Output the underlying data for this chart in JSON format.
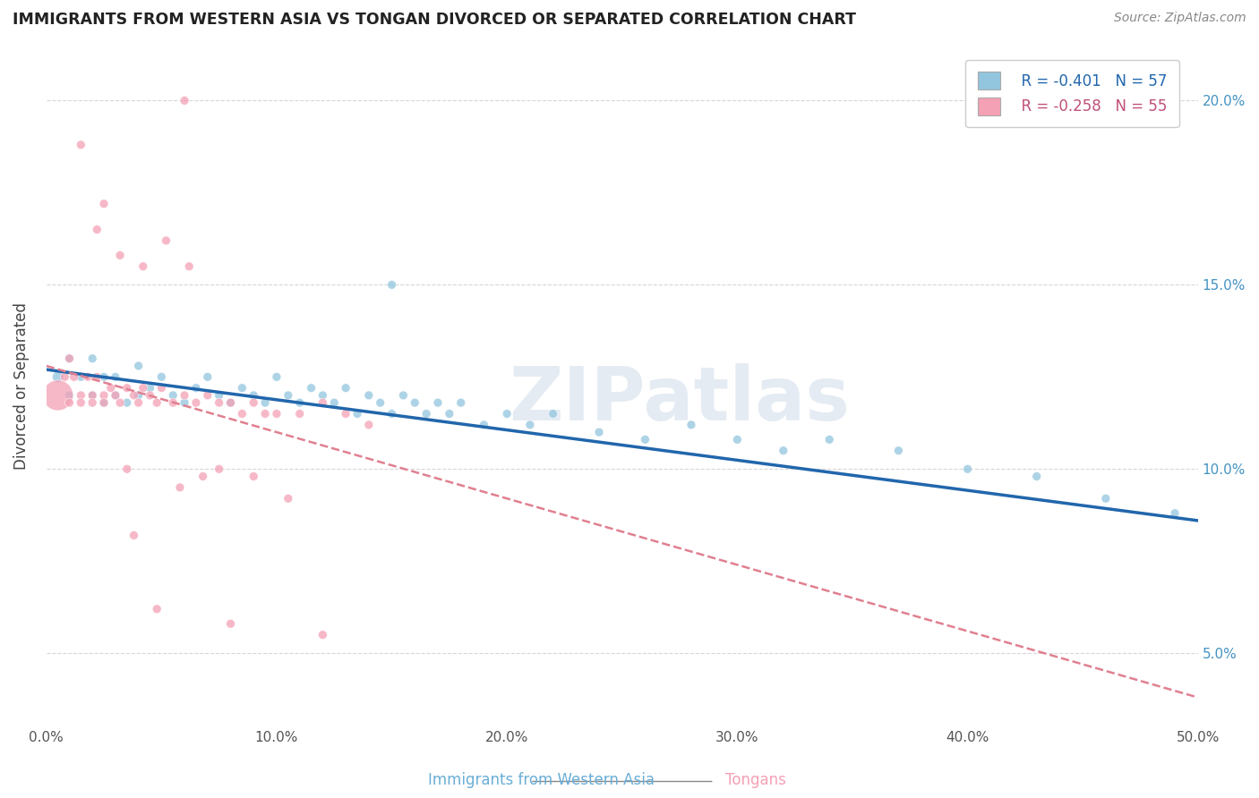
{
  "title": "IMMIGRANTS FROM WESTERN ASIA VS TONGAN DIVORCED OR SEPARATED CORRELATION CHART",
  "source_text": "Source: ZipAtlas.com",
  "xlabel_blue": "Immigrants from Western Asia",
  "xlabel_pink": "Tongans",
  "ylabel": "Divorced or Separated",
  "watermark": "ZIPatlas",
  "legend_blue_r": "R = -0.401",
  "legend_blue_n": "N = 57",
  "legend_pink_r": "R = -0.258",
  "legend_pink_n": "N = 55",
  "blue_color": "#92c5de",
  "pink_color": "#f4a0b5",
  "trend_blue_color": "#2166ac",
  "trend_pink_color": "#e08090",
  "xlim": [
    0.0,
    0.5
  ],
  "ylim": [
    0.03,
    0.215
  ],
  "x_ticks": [
    0.0,
    0.1,
    0.2,
    0.3,
    0.4,
    0.5
  ],
  "x_tick_labels": [
    "0.0%",
    "10.0%",
    "20.0%",
    "30.0%",
    "40.0%",
    "50.0%"
  ],
  "y_ticks": [
    0.05,
    0.1,
    0.15,
    0.2
  ],
  "right_y_tick_labels": [
    "5.0%",
    "10.0%",
    "15.0%",
    "20.0%"
  ],
  "blue_scatter_x": [
    0.005,
    0.01,
    0.01,
    0.015,
    0.02,
    0.02,
    0.025,
    0.025,
    0.03,
    0.03,
    0.035,
    0.04,
    0.04,
    0.045,
    0.05,
    0.055,
    0.06,
    0.065,
    0.07,
    0.075,
    0.08,
    0.085,
    0.09,
    0.095,
    0.1,
    0.105,
    0.11,
    0.115,
    0.12,
    0.125,
    0.13,
    0.135,
    0.14,
    0.145,
    0.15,
    0.155,
    0.16,
    0.165,
    0.17,
    0.175,
    0.18,
    0.19,
    0.2,
    0.21,
    0.22,
    0.24,
    0.26,
    0.28,
    0.3,
    0.32,
    0.34,
    0.37,
    0.4,
    0.43,
    0.46,
    0.49,
    0.15
  ],
  "blue_scatter_y": [
    0.125,
    0.13,
    0.12,
    0.125,
    0.12,
    0.13,
    0.118,
    0.125,
    0.12,
    0.125,
    0.118,
    0.12,
    0.128,
    0.122,
    0.125,
    0.12,
    0.118,
    0.122,
    0.125,
    0.12,
    0.118,
    0.122,
    0.12,
    0.118,
    0.125,
    0.12,
    0.118,
    0.122,
    0.12,
    0.118,
    0.122,
    0.115,
    0.12,
    0.118,
    0.115,
    0.12,
    0.118,
    0.115,
    0.118,
    0.115,
    0.118,
    0.112,
    0.115,
    0.112,
    0.115,
    0.11,
    0.108,
    0.112,
    0.108,
    0.105,
    0.108,
    0.105,
    0.1,
    0.098,
    0.092,
    0.088,
    0.15
  ],
  "blue_scatter_sizes": [
    80,
    50,
    50,
    50,
    50,
    50,
    50,
    50,
    50,
    50,
    50,
    50,
    50,
    50,
    50,
    50,
    50,
    50,
    50,
    50,
    50,
    50,
    50,
    50,
    50,
    50,
    50,
    50,
    50,
    50,
    50,
    50,
    50,
    50,
    50,
    50,
    50,
    50,
    50,
    50,
    50,
    50,
    50,
    50,
    50,
    50,
    50,
    50,
    50,
    50,
    50,
    50,
    50,
    50,
    50,
    50,
    50
  ],
  "pink_scatter_x": [
    0.005,
    0.008,
    0.01,
    0.01,
    0.012,
    0.015,
    0.015,
    0.018,
    0.02,
    0.02,
    0.022,
    0.025,
    0.025,
    0.028,
    0.03,
    0.032,
    0.035,
    0.038,
    0.04,
    0.042,
    0.045,
    0.048,
    0.05,
    0.055,
    0.06,
    0.065,
    0.07,
    0.075,
    0.08,
    0.085,
    0.09,
    0.095,
    0.1,
    0.11,
    0.12,
    0.13,
    0.14,
    0.022,
    0.032,
    0.042,
    0.052,
    0.062,
    0.075,
    0.09,
    0.105,
    0.038,
    0.048,
    0.058,
    0.068,
    0.08,
    0.015,
    0.025,
    0.035,
    0.06,
    0.12
  ],
  "pink_scatter_y": [
    0.12,
    0.125,
    0.13,
    0.118,
    0.125,
    0.12,
    0.118,
    0.125,
    0.12,
    0.118,
    0.125,
    0.12,
    0.118,
    0.122,
    0.12,
    0.118,
    0.122,
    0.12,
    0.118,
    0.122,
    0.12,
    0.118,
    0.122,
    0.118,
    0.12,
    0.118,
    0.12,
    0.118,
    0.118,
    0.115,
    0.118,
    0.115,
    0.115,
    0.115,
    0.118,
    0.115,
    0.112,
    0.165,
    0.158,
    0.155,
    0.162,
    0.155,
    0.1,
    0.098,
    0.092,
    0.082,
    0.062,
    0.095,
    0.098,
    0.058,
    0.188,
    0.172,
    0.1,
    0.2,
    0.055
  ],
  "pink_scatter_sizes": [
    600,
    50,
    50,
    50,
    50,
    50,
    50,
    50,
    50,
    50,
    50,
    50,
    50,
    50,
    50,
    50,
    50,
    50,
    50,
    50,
    50,
    50,
    50,
    50,
    50,
    50,
    50,
    50,
    50,
    50,
    50,
    50,
    50,
    50,
    50,
    50,
    50,
    50,
    50,
    50,
    50,
    50,
    50,
    50,
    50,
    50,
    50,
    50,
    50,
    50,
    50,
    50,
    50,
    50,
    50
  ],
  "blue_trend_x0": 0.0,
  "blue_trend_x1": 0.5,
  "blue_trend_y0": 0.127,
  "blue_trend_y1": 0.086,
  "pink_trend_x0": 0.0,
  "pink_trend_x1": 0.5,
  "pink_trend_y0": 0.128,
  "pink_trend_y1": 0.038
}
